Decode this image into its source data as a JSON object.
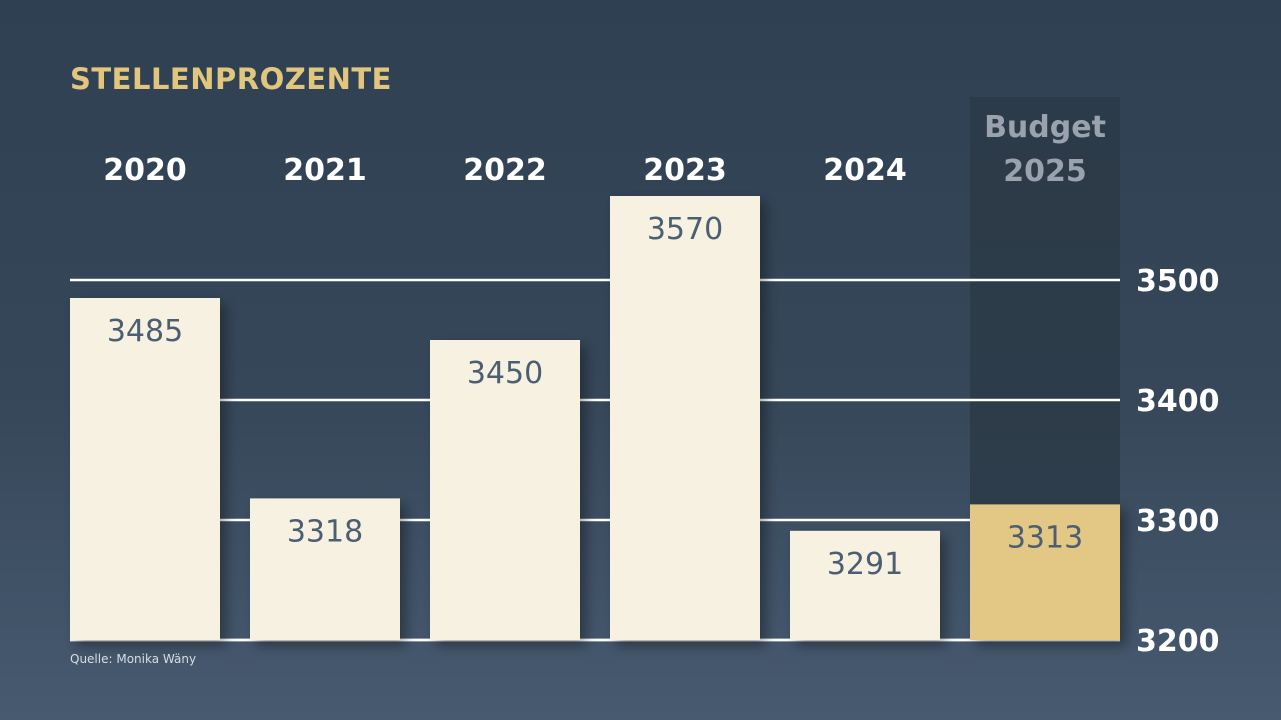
{
  "title": "STELLENPROZENTE",
  "source": "Quelle: Monika Wäny",
  "chart_data": {
    "type": "bar",
    "title": "STELLENPROZENTE",
    "categories": [
      [
        "2020"
      ],
      [
        "2021"
      ],
      [
        "2022"
      ],
      [
        "2023"
      ],
      [
        "2024"
      ],
      [
        "Budget",
        "2025"
      ]
    ],
    "values": [
      3485,
      3318,
      3450,
      3570,
      3291,
      3313
    ],
    "highlight_index": 5,
    "ylim": [
      3200,
      3570
    ],
    "yticks": [
      3200,
      3300,
      3400,
      3500
    ],
    "y_axis_side": "right",
    "grid": true,
    "colors": {
      "bar": "#f7f1e2",
      "bar_highlight": "#e3c784",
      "highlight_band": "#2c3946",
      "gridline": "#ffffff",
      "value_label": "#4b5e72",
      "title": "#e3c67d"
    }
  }
}
